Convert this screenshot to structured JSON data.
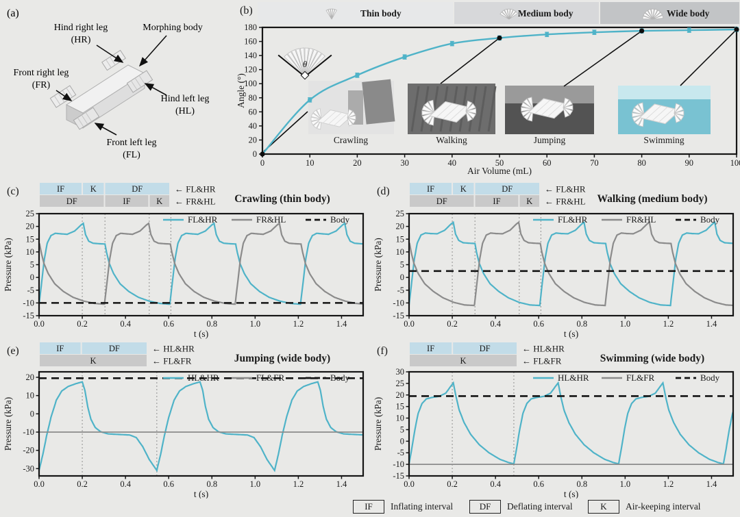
{
  "figure": {
    "arrow_char": "←",
    "panel_a": {
      "label": "(a)",
      "parts": {
        "hind_right": {
          "name": "Hind right leg",
          "abbr": "(HR)"
        },
        "morphing": {
          "name": "Morphing body",
          "abbr": ""
        },
        "front_right": {
          "name": "Front right leg",
          "abbr": "(FR)"
        },
        "hind_left": {
          "name": "Hind left leg",
          "abbr": "(HL)"
        },
        "front_left": {
          "name": "Front left leg",
          "abbr": "(FL)"
        }
      }
    },
    "panel_b": {
      "header": [
        {
          "label": "Thin body"
        },
        {
          "label": "Medium body"
        },
        {
          "label": "Wide body"
        }
      ],
      "inset_angle_symbol": "θ"
    }
  },
  "colors": {
    "accent_cyan": "#4fb3c8",
    "line_gray": "#8b8b8b",
    "body_black": "#141414",
    "bar_blue": "#c2dce8",
    "bar_gray": "#c9c9c9",
    "header_thin": "#e7e8e9",
    "header_medium": "#d7d8da",
    "header_wide": "#c2c4c6",
    "vline_gray": "#8f8f8f",
    "water": "#79c2d2"
  },
  "chart_data": [
    {
      "id": "b",
      "type": "line",
      "panel_label": "(b)",
      "xlabel": "Air Volume (mL)",
      "ylabel": "Angle (°)",
      "xlim": [
        0,
        100
      ],
      "ylim": [
        0,
        180
      ],
      "xticks": [
        0,
        10,
        20,
        30,
        40,
        50,
        60,
        70,
        80,
        90,
        100
      ],
      "yticks": [
        0,
        20,
        40,
        60,
        80,
        100,
        120,
        140,
        160,
        180
      ],
      "series": [
        {
          "name": "Angle",
          "x": [
            0,
            10,
            20,
            30,
            40,
            50,
            60,
            70,
            80,
            90,
            100
          ],
          "y": [
            0,
            77,
            112,
            138,
            157,
            165,
            170,
            173,
            175,
            176,
            177
          ],
          "error": 3,
          "color": "cyan"
        }
      ],
      "marked_points": {
        "x": [
          0,
          50,
          80,
          100
        ],
        "y": [
          0,
          165,
          175,
          177
        ],
        "captions": [
          "Crawling",
          "Walking",
          "Jumping",
          "Swimming"
        ]
      }
    },
    {
      "id": "c",
      "type": "line",
      "panel_label": "(c)",
      "title": "Crawling (thin body)",
      "xlabel": "t (s)",
      "ylabel": "Pressure (kPa)",
      "xlim": [
        0,
        1.5
      ],
      "ylim": [
        -15,
        25
      ],
      "xticks": [
        0,
        0.2,
        0.4,
        0.6,
        0.8,
        1.0,
        1.2,
        1.4
      ],
      "yticks": [
        -15,
        -10,
        -5,
        0,
        5,
        10,
        15,
        20,
        25
      ],
      "vlines": [
        0.2,
        0.305,
        0.51,
        0.61
      ],
      "period": 0.605,
      "cycle": [
        [
          0,
          -10.5
        ],
        [
          0.012,
          -2
        ],
        [
          0.024,
          7
        ],
        [
          0.038,
          13.5
        ],
        [
          0.055,
          16.4
        ],
        [
          0.075,
          17.3
        ],
        [
          0.1,
          17.1
        ],
        [
          0.13,
          16.9
        ],
        [
          0.165,
          18.2
        ],
        [
          0.195,
          20.6
        ],
        [
          0.205,
          21.2
        ],
        [
          0.215,
          16.8
        ],
        [
          0.23,
          14.2
        ],
        [
          0.25,
          13.4
        ],
        [
          0.28,
          13.2
        ],
        [
          0.305,
          13.1
        ],
        [
          0.312,
          10
        ],
        [
          0.325,
          5.5
        ],
        [
          0.345,
          1.5
        ],
        [
          0.375,
          -2.5
        ],
        [
          0.415,
          -5.5
        ],
        [
          0.46,
          -7.8
        ],
        [
          0.51,
          -9.3
        ],
        [
          0.56,
          -10.2
        ],
        [
          0.605,
          -10.5
        ]
      ],
      "series": [
        {
          "name": "FL&HR",
          "kind": "wave",
          "offset": 0,
          "color": "cyan"
        },
        {
          "name": "FR&HL",
          "kind": "wave",
          "offset": 0.3025,
          "color": "gray"
        },
        {
          "name": "Body",
          "kind": "const",
          "value": -10,
          "color": "black",
          "dashed": true
        }
      ],
      "interval_rows": [
        {
          "target": "FL&HR",
          "color": "blue",
          "segments": [
            {
              "label": "IF",
              "frac": 0.33
            },
            {
              "label": "K",
              "frac": 0.17
            },
            {
              "label": "DF",
              "frac": 0.5
            }
          ]
        },
        {
          "target": "FR&HL",
          "color": "gray",
          "segments": [
            {
              "label": "DF",
              "frac": 0.5
            },
            {
              "label": "IF",
              "frac": 0.34
            },
            {
              "label": "K",
              "frac": 0.16
            }
          ]
        }
      ]
    },
    {
      "id": "d",
      "type": "line",
      "panel_label": "(d)",
      "title": "Walking (medium body)",
      "xlabel": "t (s)",
      "ylabel": "Pressure (kPa)",
      "xlim": [
        0,
        1.5
      ],
      "ylim": [
        -15,
        25
      ],
      "xticks": [
        0,
        0.2,
        0.4,
        0.6,
        0.8,
        1.0,
        1.2,
        1.4
      ],
      "yticks": [
        -15,
        -10,
        -5,
        0,
        5,
        10,
        15,
        20,
        25
      ],
      "vlines": [
        0.2,
        0.305,
        0.51,
        0.61
      ],
      "period": 0.605,
      "cycle": [
        [
          0,
          -10.8
        ],
        [
          0.012,
          -2
        ],
        [
          0.024,
          7
        ],
        [
          0.038,
          13.5
        ],
        [
          0.055,
          16.6
        ],
        [
          0.075,
          17.4
        ],
        [
          0.1,
          17.2
        ],
        [
          0.13,
          17.1
        ],
        [
          0.165,
          18.5
        ],
        [
          0.195,
          21
        ],
        [
          0.205,
          21.6
        ],
        [
          0.215,
          17
        ],
        [
          0.23,
          14.5
        ],
        [
          0.25,
          13.6
        ],
        [
          0.28,
          13.4
        ],
        [
          0.305,
          13.3
        ],
        [
          0.312,
          10
        ],
        [
          0.325,
          5.5
        ],
        [
          0.345,
          1.5
        ],
        [
          0.375,
          -2.5
        ],
        [
          0.415,
          -5.5
        ],
        [
          0.46,
          -8
        ],
        [
          0.51,
          -9.8
        ],
        [
          0.56,
          -10.8
        ],
        [
          0.605,
          -11
        ]
      ],
      "series": [
        {
          "name": "FL&HR",
          "kind": "wave",
          "offset": 0,
          "color": "cyan"
        },
        {
          "name": "FR&HL",
          "kind": "wave",
          "offset": 0.3025,
          "color": "gray"
        },
        {
          "name": "Body",
          "kind": "const",
          "value": 2.5,
          "color": "black",
          "dashed": true
        }
      ],
      "interval_rows": [
        {
          "target": "FL&HR",
          "color": "blue",
          "segments": [
            {
              "label": "IF",
              "frac": 0.33
            },
            {
              "label": "K",
              "frac": 0.17
            },
            {
              "label": "DF",
              "frac": 0.5
            }
          ]
        },
        {
          "target": "FR&HL",
          "color": "gray",
          "segments": [
            {
              "label": "DF",
              "frac": 0.5
            },
            {
              "label": "IF",
              "frac": 0.34
            },
            {
              "label": "K",
              "frac": 0.16
            }
          ]
        }
      ]
    },
    {
      "id": "e",
      "type": "line",
      "panel_label": "(e)",
      "title": "Jumping (wide body)",
      "xlabel": "t (s)",
      "ylabel": "Pressure (kPa)",
      "xlim": [
        0,
        1.5
      ],
      "ylim": [
        -34,
        23
      ],
      "xticks": [
        0,
        0.2,
        0.4,
        0.6,
        0.8,
        1.0,
        1.2,
        1.4
      ],
      "yticks": [
        -30,
        -20,
        -10,
        0,
        10,
        20
      ],
      "vlines": [
        0.2,
        0.545
      ],
      "period": 0.545,
      "cycle": [
        [
          0,
          -31
        ],
        [
          0.018,
          -22
        ],
        [
          0.035,
          -12
        ],
        [
          0.055,
          -2
        ],
        [
          0.08,
          7.5
        ],
        [
          0.105,
          12.5
        ],
        [
          0.135,
          15
        ],
        [
          0.17,
          16.5
        ],
        [
          0.2,
          17.5
        ],
        [
          0.212,
          13
        ],
        [
          0.225,
          4
        ],
        [
          0.24,
          -3
        ],
        [
          0.26,
          -7.5
        ],
        [
          0.285,
          -9.8
        ],
        [
          0.32,
          -11
        ],
        [
          0.37,
          -11.3
        ],
        [
          0.42,
          -11.6
        ],
        [
          0.45,
          -13
        ],
        [
          0.48,
          -18
        ],
        [
          0.51,
          -25
        ],
        [
          0.545,
          -31
        ]
      ],
      "series": [
        {
          "name": "HL&HR",
          "kind": "wave",
          "offset": 0,
          "color": "cyan"
        },
        {
          "name": "FL&FR",
          "kind": "const",
          "value": -10,
          "color": "gray"
        },
        {
          "name": "Body",
          "kind": "const",
          "value": 19.5,
          "color": "black",
          "dashed": true
        }
      ],
      "interval_rows": [
        {
          "target": "HL&HR",
          "color": "blue",
          "segments": [
            {
              "label": "IF",
              "frac": 0.39
            },
            {
              "label": "DF",
              "frac": 0.61
            }
          ]
        },
        {
          "target": "FL&FR",
          "color": "gray",
          "segments": [
            {
              "label": "K",
              "frac": 1
            }
          ]
        }
      ]
    },
    {
      "id": "f",
      "type": "line",
      "panel_label": "(f)",
      "title": "Swimming (wide body)",
      "xlabel": "t (s)",
      "ylabel": "Pressure (kPa)",
      "xlim": [
        0,
        1.5
      ],
      "ylim": [
        -15,
        30
      ],
      "xticks": [
        0,
        0.2,
        0.4,
        0.6,
        0.8,
        1.0,
        1.2,
        1.4
      ],
      "yticks": [
        -15,
        -10,
        -5,
        0,
        5,
        10,
        15,
        20,
        25,
        30
      ],
      "vlines": [
        0.2,
        0.485
      ],
      "period": 0.485,
      "cycle": [
        [
          0,
          -9.8
        ],
        [
          0.013,
          -3
        ],
        [
          0.027,
          5
        ],
        [
          0.042,
          12
        ],
        [
          0.06,
          16.3
        ],
        [
          0.08,
          18.3
        ],
        [
          0.11,
          19
        ],
        [
          0.14,
          19.4
        ],
        [
          0.17,
          20.8
        ],
        [
          0.195,
          24
        ],
        [
          0.205,
          25.2
        ],
        [
          0.218,
          19
        ],
        [
          0.232,
          13.5
        ],
        [
          0.255,
          8
        ],
        [
          0.285,
          3
        ],
        [
          0.325,
          -1.5
        ],
        [
          0.37,
          -5
        ],
        [
          0.42,
          -7.8
        ],
        [
          0.46,
          -9.2
        ],
        [
          0.485,
          -9.8
        ]
      ],
      "series": [
        {
          "name": "HL&HR",
          "kind": "wave",
          "offset": 0,
          "color": "cyan"
        },
        {
          "name": "FL&FR",
          "kind": "const",
          "value": -10,
          "color": "gray"
        },
        {
          "name": "Body",
          "kind": "const",
          "value": 19.5,
          "color": "black",
          "dashed": true
        }
      ],
      "interval_rows": [
        {
          "target": "HL&HR",
          "color": "blue",
          "segments": [
            {
              "label": "IF",
              "frac": 0.4
            },
            {
              "label": "DF",
              "frac": 0.6
            }
          ]
        },
        {
          "target": "FL&FR",
          "color": "gray",
          "segments": [
            {
              "label": "K",
              "frac": 1
            }
          ]
        }
      ]
    }
  ],
  "footer": {
    "items": [
      {
        "abbr": "IF",
        "label": "Inflating interval"
      },
      {
        "abbr": "DF",
        "label": "Deflating interval"
      },
      {
        "abbr": "K",
        "label": "Air-keeping interval"
      }
    ]
  }
}
